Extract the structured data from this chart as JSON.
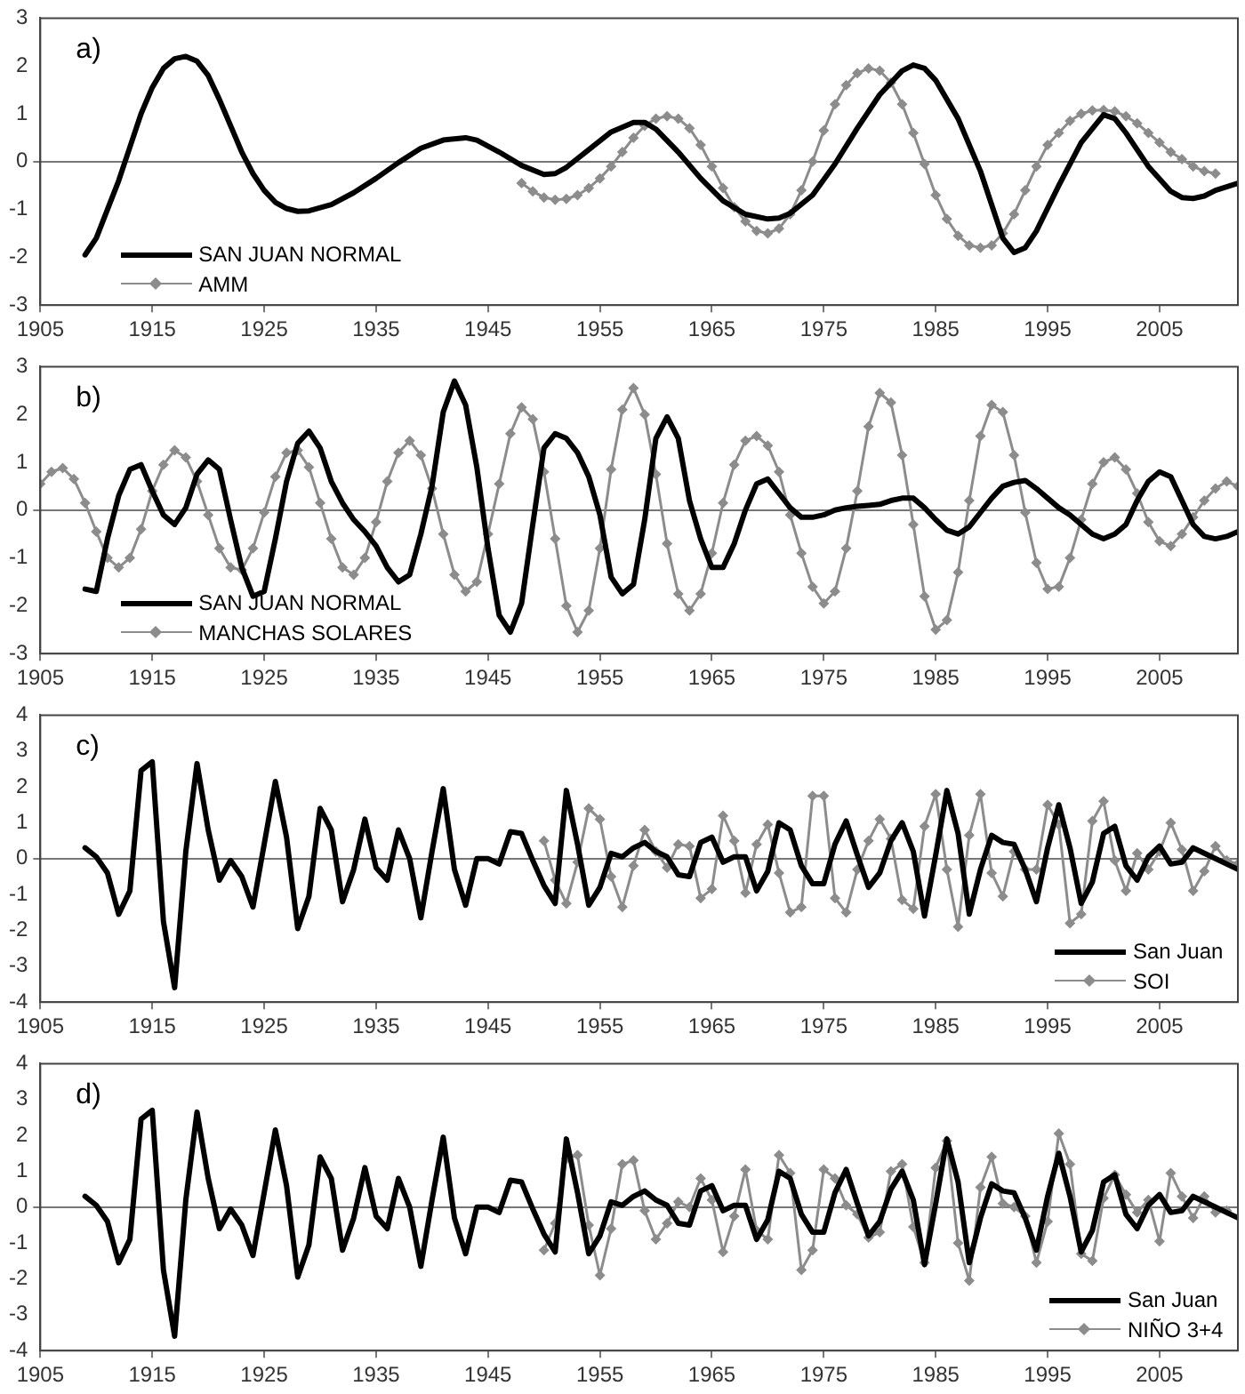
{
  "chart_data": [
    {
      "type": "line",
      "annotations": [
        "a)"
      ],
      "xlim": [
        1905,
        2012
      ],
      "xticks": [
        1905,
        1915,
        1925,
        1935,
        1945,
        1955,
        1965,
        1975,
        1985,
        1995,
        2005
      ],
      "ylim": [
        -3,
        3
      ],
      "yticks": [
        -3,
        -2,
        -1,
        0,
        1,
        2,
        3
      ],
      "legend": "bottom left",
      "series": [
        {
          "name": "SAN JUAN NORMAL",
          "color": "#000000",
          "marker": "none",
          "x": [
            1909,
            1910,
            1911,
            1912,
            1913,
            1914,
            1915,
            1916,
            1917,
            1918,
            1919,
            1920,
            1921,
            1922,
            1923,
            1924,
            1925,
            1926,
            1927,
            1928,
            1929,
            1931,
            1933,
            1935,
            1937,
            1939,
            1941,
            1943,
            1944,
            1946,
            1948,
            1950,
            1951,
            1952,
            1954,
            1956,
            1958,
            1959,
            1960,
            1962,
            1964,
            1966,
            1968,
            1970,
            1971,
            1972,
            1974,
            1976,
            1978,
            1980,
            1982,
            1983,
            1984,
            1985,
            1987,
            1989,
            1990,
            1991,
            1992,
            1993,
            1994,
            1996,
            1998,
            2000,
            2001,
            2002,
            2004,
            2006,
            2007,
            2008,
            2009,
            2010,
            2012
          ],
          "values": [
            -1.95,
            -1.6,
            -1.0,
            -0.4,
            0.3,
            1.0,
            1.55,
            1.95,
            2.15,
            2.2,
            2.1,
            1.8,
            1.3,
            0.75,
            0.2,
            -0.25,
            -0.6,
            -0.85,
            -0.98,
            -1.04,
            -1.03,
            -0.9,
            -0.65,
            -0.35,
            -0.02,
            0.28,
            0.45,
            0.5,
            0.45,
            0.2,
            -0.08,
            -0.27,
            -0.25,
            -0.12,
            0.25,
            0.62,
            0.82,
            0.82,
            0.68,
            0.2,
            -0.35,
            -0.82,
            -1.1,
            -1.2,
            -1.18,
            -1.08,
            -0.7,
            -0.05,
            0.7,
            1.4,
            1.9,
            2.02,
            1.95,
            1.7,
            0.9,
            -0.2,
            -0.9,
            -1.6,
            -1.9,
            -1.8,
            -1.45,
            -0.5,
            0.4,
            0.98,
            0.9,
            0.6,
            -0.1,
            -0.62,
            -0.75,
            -0.77,
            -0.72,
            -0.6,
            -0.45
          ]
        },
        {
          "name": "AMM",
          "color": "#8c8c8c",
          "marker": "diamond",
          "x": [
            1948,
            1949,
            1950,
            1951,
            1952,
            1953,
            1954,
            1955,
            1956,
            1957,
            1958,
            1959,
            1960,
            1961,
            1962,
            1963,
            1964,
            1965,
            1966,
            1967,
            1968,
            1969,
            1970,
            1971,
            1972,
            1973,
            1974,
            1975,
            1976,
            1977,
            1978,
            1979,
            1980,
            1981,
            1982,
            1983,
            1984,
            1985,
            1986,
            1987,
            1988,
            1989,
            1990,
            1991,
            1992,
            1993,
            1994,
            1995,
            1996,
            1997,
            1998,
            1999,
            2000,
            2001,
            2002,
            2003,
            2004,
            2005,
            2006,
            2007,
            2008,
            2009,
            2010
          ],
          "values": [
            -0.45,
            -0.62,
            -0.75,
            -0.8,
            -0.78,
            -0.7,
            -0.55,
            -0.35,
            -0.1,
            0.2,
            0.5,
            0.75,
            0.9,
            0.95,
            0.9,
            0.7,
            0.35,
            -0.1,
            -0.55,
            -0.95,
            -1.25,
            -1.45,
            -1.5,
            -1.4,
            -1.1,
            -0.6,
            0.0,
            0.65,
            1.2,
            1.6,
            1.85,
            1.95,
            1.9,
            1.65,
            1.2,
            0.6,
            -0.05,
            -0.7,
            -1.2,
            -1.55,
            -1.75,
            -1.8,
            -1.75,
            -1.5,
            -1.1,
            -0.6,
            -0.1,
            0.35,
            0.6,
            0.85,
            1.0,
            1.07,
            1.08,
            1.05,
            0.95,
            0.8,
            0.6,
            0.4,
            0.2,
            0.05,
            -0.1,
            -0.2,
            -0.25
          ]
        }
      ]
    },
    {
      "type": "line",
      "annotations": [
        "b)"
      ],
      "xlim": [
        1905,
        2012
      ],
      "xticks": [
        1905,
        1915,
        1925,
        1935,
        1945,
        1955,
        1965,
        1975,
        1985,
        1995,
        2005
      ],
      "ylim": [
        -3,
        3
      ],
      "yticks": [
        -3,
        -2,
        -1,
        0,
        1,
        2,
        3
      ],
      "legend": "bottom left",
      "x": [
        1905,
        1906,
        1907,
        1908,
        1909,
        1910,
        1911,
        1912,
        1913,
        1914,
        1915,
        1916,
        1917,
        1918,
        1919,
        1920,
        1921,
        1922,
        1923,
        1924,
        1925,
        1926,
        1927,
        1928,
        1929,
        1930,
        1931,
        1932,
        1933,
        1934,
        1935,
        1936,
        1937,
        1938,
        1939,
        1940,
        1941,
        1942,
        1943,
        1944,
        1945,
        1946,
        1947,
        1948,
        1949,
        1950,
        1951,
        1952,
        1953,
        1954,
        1955,
        1956,
        1957,
        1958,
        1959,
        1960,
        1961,
        1962,
        1963,
        1964,
        1965,
        1966,
        1967,
        1968,
        1969,
        1970,
        1971,
        1972,
        1973,
        1974,
        1975,
        1976,
        1977,
        1978,
        1979,
        1980,
        1981,
        1982,
        1983,
        1984,
        1985,
        1986,
        1987,
        1988,
        1989,
        1990,
        1991,
        1992,
        1993,
        1994,
        1995,
        1996,
        1997,
        1998,
        1999,
        2000,
        2001,
        2002,
        2003,
        2004,
        2005,
        2006,
        2007,
        2008,
        2009,
        2010,
        2011,
        2012
      ],
      "series": [
        {
          "name": "SAN JUAN NORMAL",
          "color": "#000000",
          "marker": "none",
          "values": [
            null,
            null,
            null,
            null,
            -1.65,
            -1.7,
            -0.6,
            0.3,
            0.85,
            0.95,
            0.4,
            -0.1,
            -0.3,
            0.05,
            0.75,
            1.05,
            0.85,
            -0.2,
            -1.2,
            -1.8,
            -1.7,
            -0.6,
            0.6,
            1.4,
            1.65,
            1.3,
            0.6,
            0.15,
            -0.2,
            -0.45,
            -0.75,
            -1.2,
            -1.5,
            -1.35,
            -0.5,
            0.5,
            2.05,
            2.7,
            2.2,
            0.9,
            -0.8,
            -2.2,
            -2.55,
            -1.95,
            -0.3,
            1.3,
            1.6,
            1.5,
            1.2,
            0.7,
            -0.1,
            -1.4,
            -1.75,
            -1.55,
            -0.2,
            1.5,
            1.95,
            1.5,
            0.2,
            -0.6,
            -1.2,
            -1.2,
            -0.7,
            0.0,
            0.55,
            0.65,
            0.35,
            0.05,
            -0.15,
            -0.15,
            -0.1,
            0.0,
            0.05,
            0.08,
            0.1,
            0.12,
            0.2,
            0.25,
            0.25,
            0.05,
            -0.2,
            -0.42,
            -0.5,
            -0.35,
            -0.05,
            0.25,
            0.5,
            0.58,
            0.62,
            0.45,
            0.25,
            0.05,
            -0.1,
            -0.3,
            -0.5,
            -0.6,
            -0.5,
            -0.3,
            0.2,
            0.6,
            0.8,
            0.7,
            0.2,
            -0.3,
            -0.55,
            -0.6,
            -0.55,
            -0.45
          ]
        },
        {
          "name": "MANCHAS SOLARES",
          "color": "#8c8c8c",
          "marker": "diamond",
          "values": [
            0.55,
            0.8,
            0.88,
            0.65,
            0.15,
            -0.45,
            -1.0,
            -1.2,
            -1.0,
            -0.4,
            0.4,
            0.95,
            1.25,
            1.1,
            0.6,
            -0.1,
            -0.8,
            -1.2,
            -1.25,
            -0.8,
            -0.05,
            0.7,
            1.2,
            1.25,
            0.9,
            0.15,
            -0.6,
            -1.2,
            -1.35,
            -1.0,
            -0.25,
            0.6,
            1.2,
            1.45,
            1.15,
            0.45,
            -0.5,
            -1.35,
            -1.7,
            -1.5,
            -0.5,
            0.55,
            1.6,
            2.15,
            1.9,
            0.8,
            -0.6,
            -2.0,
            -2.55,
            -2.1,
            -0.8,
            0.85,
            2.1,
            2.55,
            2.0,
            0.75,
            -0.7,
            -1.75,
            -2.1,
            -1.75,
            -0.9,
            0.15,
            0.95,
            1.45,
            1.55,
            1.35,
            0.8,
            -0.1,
            -0.9,
            -1.6,
            -1.95,
            -1.7,
            -0.8,
            0.4,
            1.75,
            2.45,
            2.25,
            1.15,
            -0.3,
            -1.8,
            -2.5,
            -2.3,
            -1.3,
            0.2,
            1.55,
            2.2,
            2.05,
            1.15,
            -0.05,
            -1.1,
            -1.65,
            -1.6,
            -1.0,
            -0.2,
            0.55,
            1.0,
            1.1,
            0.85,
            0.35,
            -0.25,
            -0.65,
            -0.75,
            -0.5,
            -0.15,
            0.2,
            0.45,
            0.6,
            0.5
          ]
        }
      ]
    },
    {
      "type": "line",
      "annotations": [
        "c)"
      ],
      "xlim": [
        1905,
        2012
      ],
      "xticks": [
        1905,
        1915,
        1925,
        1935,
        1945,
        1955,
        1965,
        1975,
        1985,
        1995,
        2005
      ],
      "ylim": [
        -4,
        4
      ],
      "yticks": [
        -4,
        -3,
        -2,
        -1,
        0,
        1,
        2,
        3,
        4
      ],
      "legend": "bottom right",
      "x": [
        1909,
        1910,
        1911,
        1912,
        1913,
        1914,
        1915,
        1916,
        1917,
        1918,
        1919,
        1920,
        1921,
        1922,
        1923,
        1924,
        1925,
        1926,
        1927,
        1928,
        1929,
        1930,
        1931,
        1932,
        1933,
        1934,
        1935,
        1936,
        1937,
        1938,
        1939,
        1940,
        1941,
        1942,
        1943,
        1944,
        1945,
        1946,
        1947,
        1948,
        1949,
        1950,
        1951,
        1952,
        1953,
        1954,
        1955,
        1956,
        1957,
        1958,
        1959,
        1960,
        1961,
        1962,
        1963,
        1964,
        1965,
        1966,
        1967,
        1968,
        1969,
        1970,
        1971,
        1972,
        1973,
        1974,
        1975,
        1976,
        1977,
        1978,
        1979,
        1980,
        1981,
        1982,
        1983,
        1984,
        1985,
        1986,
        1987,
        1988,
        1989,
        1990,
        1991,
        1992,
        1993,
        1994,
        1995,
        1996,
        1997,
        1998,
        1999,
        2000,
        2001,
        2002,
        2003,
        2004,
        2005,
        2006,
        2007,
        2008,
        2009,
        2010,
        2011,
        2012
      ],
      "series": [
        {
          "name": "San Juan",
          "color": "#000000",
          "marker": "none",
          "values": [
            0.3,
            0.05,
            -0.4,
            -1.55,
            -0.9,
            2.45,
            2.7,
            -1.75,
            -3.6,
            0.2,
            2.65,
            0.8,
            -0.6,
            -0.05,
            -0.5,
            -1.35,
            0.4,
            2.15,
            0.6,
            -1.95,
            -1.05,
            1.4,
            0.8,
            -1.2,
            -0.3,
            1.1,
            -0.25,
            -0.6,
            0.8,
            0.0,
            -1.65,
            0.2,
            1.95,
            -0.3,
            -1.3,
            0.0,
            0.0,
            -0.15,
            0.75,
            0.7,
            -0.05,
            -0.75,
            -1.25,
            1.9,
            0.4,
            -1.3,
            -0.8,
            0.15,
            0.05,
            0.3,
            0.45,
            0.2,
            0.05,
            -0.45,
            -0.5,
            0.45,
            0.6,
            -0.1,
            0.05,
            0.05,
            -0.9,
            -0.35,
            1.0,
            0.8,
            -0.2,
            -0.7,
            -0.7,
            0.4,
            1.05,
            0.1,
            -0.8,
            -0.4,
            0.5,
            1.0,
            0.2,
            -1.6,
            0.1,
            1.9,
            0.7,
            -1.55,
            -0.3,
            0.65,
            0.45,
            0.4,
            -0.3,
            -1.2,
            0.3,
            1.5,
            0.3,
            -1.25,
            -0.65,
            0.7,
            0.9,
            -0.2,
            -0.6,
            0.05,
            0.35,
            -0.15,
            -0.1,
            0.3,
            0.15,
            0.0,
            -0.15,
            -0.3
          ]
        },
        {
          "name": "SOI",
          "color": "#8c8c8c",
          "marker": "diamond",
          "values": [
            null,
            null,
            null,
            null,
            null,
            null,
            null,
            null,
            null,
            null,
            null,
            null,
            null,
            null,
            null,
            null,
            null,
            null,
            null,
            null,
            null,
            null,
            null,
            null,
            null,
            null,
            null,
            null,
            null,
            null,
            null,
            null,
            null,
            null,
            null,
            null,
            null,
            null,
            null,
            null,
            null,
            0.5,
            -0.6,
            -1.25,
            -0.1,
            1.4,
            1.1,
            -0.5,
            -1.35,
            -0.2,
            0.8,
            0.2,
            -0.25,
            0.4,
            0.35,
            -1.1,
            -0.85,
            1.2,
            0.5,
            -0.95,
            0.4,
            0.95,
            -0.4,
            -1.5,
            -1.35,
            1.75,
            1.75,
            -1.1,
            -1.5,
            -0.3,
            0.5,
            1.1,
            0.55,
            -1.15,
            -1.4,
            0.9,
            1.8,
            -0.3,
            -1.9,
            0.65,
            1.8,
            -0.4,
            -1.05,
            0.2,
            -0.3,
            -0.3,
            1.5,
            0.95,
            -1.8,
            -1.55,
            1.05,
            1.6,
            -0.05,
            -0.9,
            0.15,
            -0.3,
            0.2,
            1.0,
            0.25,
            -0.9,
            -0.35,
            0.35,
            -0.05,
            -0.15
          ]
        }
      ]
    },
    {
      "type": "line",
      "annotations": [
        "d)"
      ],
      "xlim": [
        1905,
        2012
      ],
      "xticks": [
        1905,
        1915,
        1925,
        1935,
        1945,
        1955,
        1965,
        1975,
        1985,
        1995,
        2005
      ],
      "ylim": [
        -4,
        4
      ],
      "yticks": [
        -4,
        -3,
        -2,
        -1,
        0,
        1,
        2,
        3,
        4
      ],
      "legend": "bottom right",
      "x": [
        1909,
        1910,
        1911,
        1912,
        1913,
        1914,
        1915,
        1916,
        1917,
        1918,
        1919,
        1920,
        1921,
        1922,
        1923,
        1924,
        1925,
        1926,
        1927,
        1928,
        1929,
        1930,
        1931,
        1932,
        1933,
        1934,
        1935,
        1936,
        1937,
        1938,
        1939,
        1940,
        1941,
        1942,
        1943,
        1944,
        1945,
        1946,
        1947,
        1948,
        1949,
        1950,
        1951,
        1952,
        1953,
        1954,
        1955,
        1956,
        1957,
        1958,
        1959,
        1960,
        1961,
        1962,
        1963,
        1964,
        1965,
        1966,
        1967,
        1968,
        1969,
        1970,
        1971,
        1972,
        1973,
        1974,
        1975,
        1976,
        1977,
        1978,
        1979,
        1980,
        1981,
        1982,
        1983,
        1984,
        1985,
        1986,
        1987,
        1988,
        1989,
        1990,
        1991,
        1992,
        1993,
        1994,
        1995,
        1996,
        1997,
        1998,
        1999,
        2000,
        2001,
        2002,
        2003,
        2004,
        2005,
        2006,
        2007,
        2008,
        2009,
        2010,
        2011,
        2012
      ],
      "series": [
        {
          "name": "San Juan",
          "color": "#000000",
          "marker": "none",
          "values": [
            0.3,
            0.05,
            -0.4,
            -1.55,
            -0.9,
            2.45,
            2.7,
            -1.75,
            -3.6,
            0.2,
            2.65,
            0.8,
            -0.6,
            -0.05,
            -0.5,
            -1.35,
            0.4,
            2.15,
            0.6,
            -1.95,
            -1.05,
            1.4,
            0.8,
            -1.2,
            -0.3,
            1.1,
            -0.25,
            -0.6,
            0.8,
            0.0,
            -1.65,
            0.2,
            1.95,
            -0.3,
            -1.3,
            0.0,
            0.0,
            -0.15,
            0.75,
            0.7,
            -0.05,
            -0.75,
            -1.25,
            1.9,
            0.4,
            -1.3,
            -0.8,
            0.15,
            0.05,
            0.3,
            0.45,
            0.2,
            0.05,
            -0.45,
            -0.5,
            0.45,
            0.6,
            -0.1,
            0.05,
            0.05,
            -0.9,
            -0.35,
            1.0,
            0.8,
            -0.2,
            -0.7,
            -0.7,
            0.4,
            1.05,
            0.1,
            -0.8,
            -0.4,
            0.5,
            1.0,
            0.2,
            -1.6,
            0.1,
            1.9,
            0.7,
            -1.55,
            -0.3,
            0.65,
            0.45,
            0.4,
            -0.3,
            -1.2,
            0.3,
            1.5,
            0.3,
            -1.25,
            -0.65,
            0.7,
            0.9,
            -0.2,
            -0.6,
            0.05,
            0.35,
            -0.15,
            -0.1,
            0.3,
            0.15,
            0.0,
            -0.15,
            -0.3
          ]
        },
        {
          "name": "NIÑO 3+4",
          "color": "#8c8c8c",
          "marker": "diamond",
          "values": [
            null,
            null,
            null,
            null,
            null,
            null,
            null,
            null,
            null,
            null,
            null,
            null,
            null,
            null,
            null,
            null,
            null,
            null,
            null,
            null,
            null,
            null,
            null,
            null,
            null,
            null,
            null,
            null,
            null,
            null,
            null,
            null,
            null,
            null,
            null,
            null,
            null,
            null,
            null,
            null,
            null,
            -1.2,
            -0.45,
            1.35,
            1.45,
            -0.5,
            -1.9,
            -0.6,
            1.2,
            1.3,
            -0.1,
            -0.9,
            -0.45,
            0.15,
            0.0,
            0.8,
            0.2,
            -1.25,
            -0.25,
            1.05,
            -0.65,
            -0.9,
            1.45,
            0.95,
            -1.75,
            -1.2,
            1.05,
            0.8,
            0.05,
            -0.2,
            -0.85,
            -0.7,
            1.0,
            1.2,
            -0.55,
            -1.55,
            1.1,
            1.85,
            -1.0,
            -2.05,
            0.55,
            1.4,
            0.1,
            0.0,
            -0.25,
            -1.55,
            -0.4,
            2.05,
            1.2,
            -1.3,
            -1.5,
            0.25,
            0.9,
            0.35,
            -0.15,
            0.2,
            -0.95,
            0.95,
            0.3,
            -0.3,
            0.3,
            -0.15,
            -0.1,
            null
          ]
        }
      ]
    }
  ]
}
